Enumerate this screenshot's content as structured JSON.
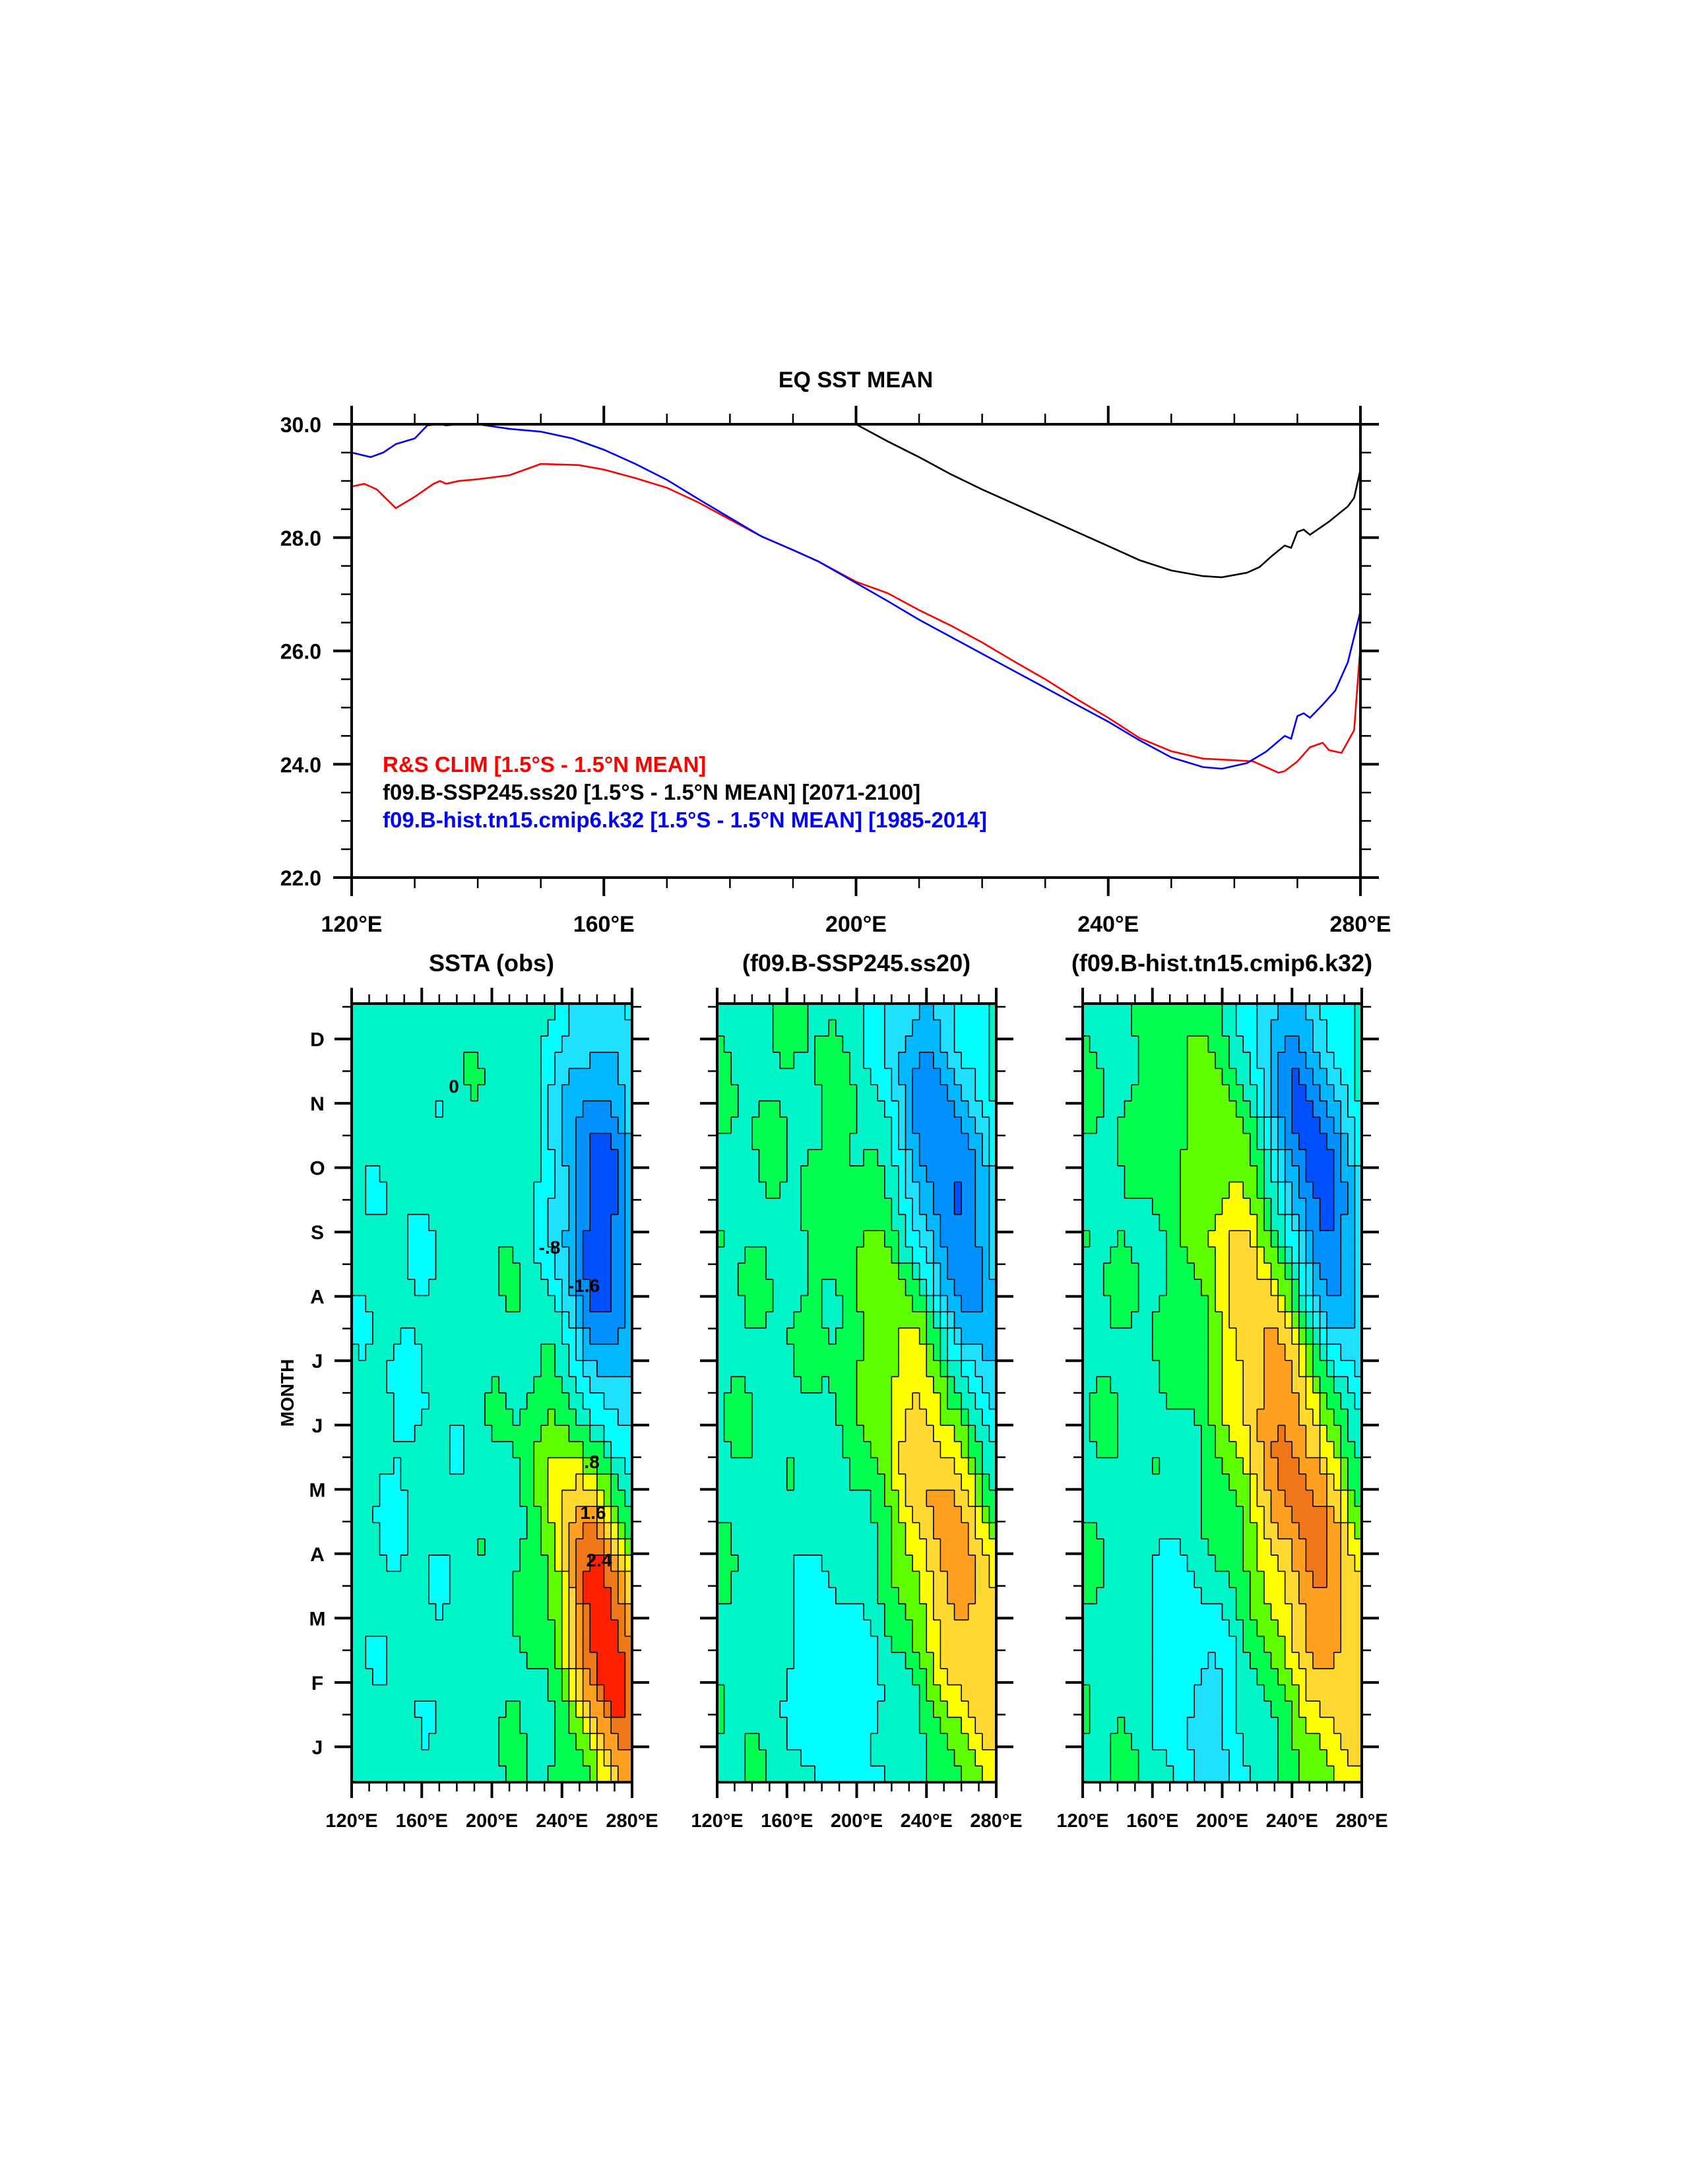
{
  "chart_data": [
    {
      "type": "line",
      "title": "EQ SST MEAN",
      "xlabel": "",
      "ylabel": "",
      "xlim": [
        120,
        280
      ],
      "ylim": [
        22,
        30
      ],
      "xticks": [
        "120°E",
        "160°E",
        "200°E",
        "240°E",
        "280°E"
      ],
      "xtick_values": [
        120,
        160,
        200,
        240,
        280
      ],
      "yticks": [
        "22.0",
        "24.0",
        "26.0",
        "28.0",
        "30.0"
      ],
      "ytick_values": [
        22,
        24,
        26,
        28,
        30
      ],
      "legend_placement": "bottom-left",
      "series": [
        {
          "name": "R&S CLIM [1.5°S - 1.5°N MEAN]",
          "color": "#ff0000",
          "x": [
            120,
            122,
            124,
            127,
            130,
            133,
            134,
            135,
            137,
            140,
            145,
            150,
            156,
            160,
            165,
            170,
            175,
            180,
            185,
            190,
            194,
            200,
            205,
            210,
            215,
            220,
            225,
            230,
            235,
            240,
            245,
            250,
            255,
            260,
            263,
            265,
            267,
            268,
            270,
            272,
            274,
            275,
            277,
            279,
            280
          ],
          "y": [
            28.9,
            28.95,
            28.85,
            28.52,
            28.72,
            28.95,
            29.0,
            28.95,
            29.0,
            29.03,
            29.1,
            29.3,
            29.28,
            29.2,
            29.05,
            28.88,
            28.62,
            28.32,
            28.02,
            27.78,
            27.58,
            27.22,
            27.02,
            26.72,
            26.45,
            26.15,
            25.82,
            25.5,
            25.15,
            24.82,
            24.46,
            24.23,
            24.1,
            24.07,
            24.05,
            23.95,
            23.85,
            23.88,
            24.05,
            24.3,
            24.38,
            24.25,
            24.2,
            24.6,
            26.1
          ]
        },
        {
          "name": "f09.B-SSP245.ss20 [1.5°S - 1.5°N MEAN] [2071-2100]",
          "color": "#000000",
          "x": [
            120,
            200,
            205,
            210,
            215,
            220,
            225,
            230,
            235,
            240,
            245,
            250,
            255,
            258,
            262,
            264,
            266,
            268,
            269,
            270,
            271,
            272,
            275,
            278,
            279,
            280
          ],
          "y": [
            30.0,
            30.0,
            29.7,
            29.42,
            29.12,
            28.85,
            28.6,
            28.35,
            28.1,
            27.85,
            27.6,
            27.42,
            27.32,
            27.3,
            27.38,
            27.48,
            27.68,
            27.86,
            27.82,
            28.1,
            28.14,
            28.05,
            28.28,
            28.55,
            28.7,
            29.2
          ]
        },
        {
          "name": "f09.B-hist.tn15.cmip6.k32 [1.5°S - 1.5°N MEAN] [1985-2014]",
          "color": "#0000ff",
          "x": [
            120,
            123,
            125,
            127,
            130,
            132,
            134,
            135,
            137,
            140,
            145,
            150,
            155,
            160,
            165,
            170,
            175,
            180,
            185,
            190,
            194,
            200,
            205,
            210,
            215,
            220,
            225,
            230,
            235,
            240,
            245,
            250,
            255,
            258,
            262,
            265,
            268,
            269,
            270,
            271,
            272,
            274,
            276,
            278,
            280
          ],
          "y": [
            29.5,
            29.42,
            29.5,
            29.65,
            29.75,
            29.98,
            30.0,
            29.98,
            30.0,
            30.0,
            29.92,
            29.87,
            29.75,
            29.55,
            29.3,
            29.02,
            28.68,
            28.35,
            28.02,
            27.78,
            27.58,
            27.2,
            26.88,
            26.55,
            26.25,
            25.95,
            25.65,
            25.35,
            25.05,
            24.75,
            24.42,
            24.12,
            23.95,
            23.92,
            24.02,
            24.22,
            24.5,
            24.45,
            24.85,
            24.9,
            24.82,
            25.05,
            25.3,
            25.8,
            26.7
          ]
        }
      ]
    },
    {
      "type": "heatmap",
      "title": "SSTA (obs)",
      "ylabel": "MONTH",
      "xlim": [
        120,
        280
      ],
      "xticks": [
        "120°E",
        "160°E",
        "200°E",
        "240°E",
        "280°E"
      ],
      "yticks": [
        "J",
        "F",
        "M",
        "A",
        "M",
        "J",
        "J",
        "A",
        "S",
        "O",
        "N",
        "D"
      ],
      "contour_levels": [
        -2.4,
        -2.0,
        -1.6,
        -1.2,
        -0.8,
        -0.4,
        0,
        0.4,
        0.8,
        1.2,
        1.6,
        2.0,
        2.4,
        2.8
      ],
      "contour_labels": [
        "0",
        ".8",
        "-.8",
        "1.6",
        "-1.6",
        "2.4"
      ],
      "features": [
        {
          "lon": 264,
          "month": 2.9,
          "amp": 3.0,
          "sig_lon": 20,
          "sig_month": 1.7,
          "tilt": 0.065
        },
        {
          "lon": 262,
          "month": 9.0,
          "amp": -2.2,
          "sig_lon": 19,
          "sig_month": 2.6,
          "tilt": 0.02
        },
        {
          "lon": 150,
          "month": 6.0,
          "amp": -0.35,
          "sig_lon": 30,
          "sig_month": 5.0,
          "tilt": 0
        }
      ]
    },
    {
      "type": "heatmap",
      "title": "(f09.B-SSP245.ss20)",
      "xlim": [
        120,
        280
      ],
      "xticks": [
        "120°E",
        "160°E",
        "200°E",
        "240°E",
        "280°E"
      ],
      "features": [
        {
          "lon": 256,
          "month": 4.3,
          "amp": 2.0,
          "sig_lon": 32,
          "sig_month": 2.3,
          "tilt": 0.07
        },
        {
          "lon": 254,
          "month": 9.2,
          "amp": -2.2,
          "sig_lon": 27,
          "sig_month": 2.2,
          "tilt": 0.07
        },
        {
          "lon": 195,
          "month": 1.5,
          "amp": -0.6,
          "sig_lon": 30,
          "sig_month": 1.8,
          "tilt": 0.03
        }
      ]
    },
    {
      "type": "heatmap",
      "title": "(f09.B-hist.tn15.cmip6.k32)",
      "xlim": [
        120,
        280
      ],
      "xticks": [
        "120°E",
        "160°E",
        "200°E",
        "240°E",
        "280°E"
      ],
      "features": [
        {
          "lon": 246,
          "month": 4.9,
          "amp": 2.2,
          "sig_lon": 38,
          "sig_month": 2.4,
          "tilt": 0.08
        },
        {
          "lon": 252,
          "month": 9.8,
          "amp": -2.3,
          "sig_lon": 24,
          "sig_month": 2.0,
          "tilt": 0.07
        },
        {
          "lon": 190,
          "month": 1.4,
          "amp": -0.95,
          "sig_lon": 22,
          "sig_month": 1.5,
          "tilt": 0.05
        }
      ]
    }
  ],
  "palette": [
    "#0000ff",
    "#0050ff",
    "#0090ff",
    "#00b8ff",
    "#20e0ff",
    "#00ffff",
    "#00f5c8",
    "#00ff50",
    "#60ff00",
    "#ffff00",
    "#ffd830",
    "#ffa020",
    "#f07818",
    "#ff2000"
  ]
}
